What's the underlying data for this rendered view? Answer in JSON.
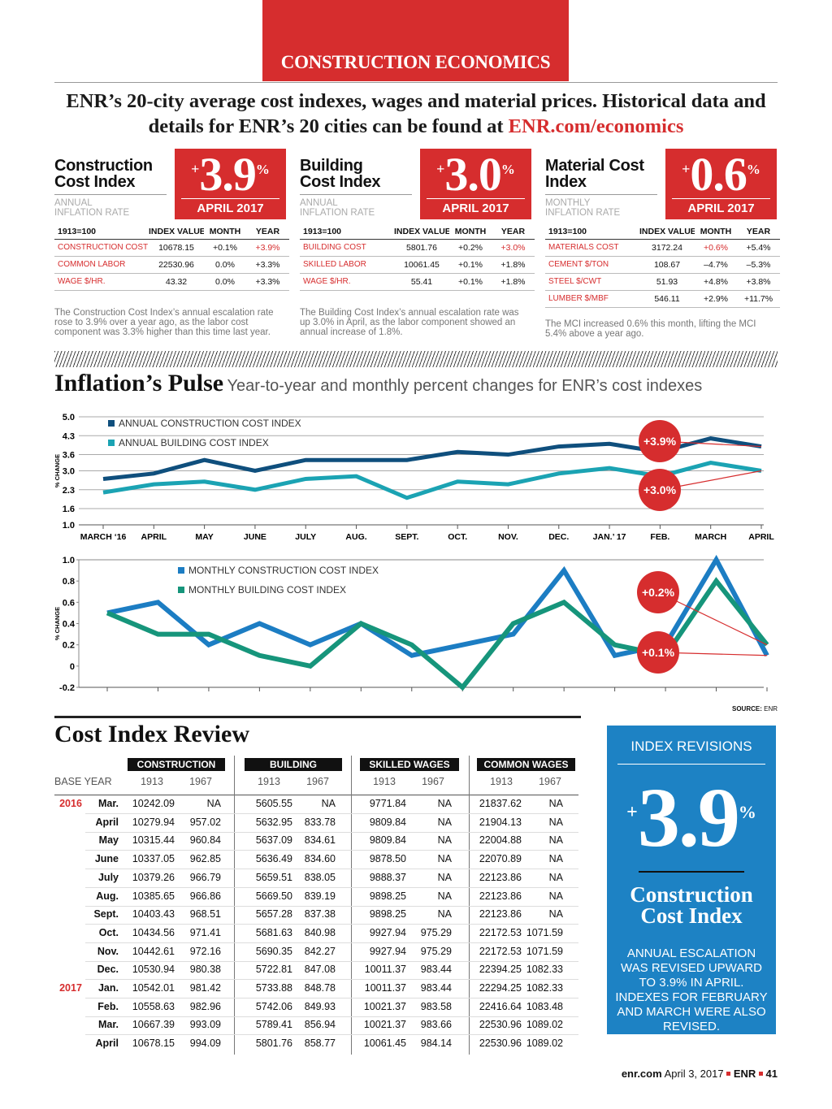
{
  "header": {
    "section": "CONSTRUCTION ECONOMICS",
    "intro": "ENR’s 20-city average cost indexes, wages and material prices. Historical data and details for ENR’s 20 cities can be found at",
    "link": "ENR.com/economics"
  },
  "panels": [
    {
      "title": "Construction Cost Index",
      "big": {
        "sign": "+",
        "number": "3.9",
        "unit": "%"
      },
      "date": "APRIL 2017",
      "rate_label": "ANNUAL INFLATION RATE",
      "columns": [
        "1913=100",
        "INDEX VALUE",
        "MONTH",
        "YEAR"
      ],
      "rows": [
        [
          "CONSTRUCTION COST",
          "10678.15",
          "+0.1%",
          "+3.9%"
        ],
        [
          "COMMON LABOR",
          "22530.96",
          "0.0%",
          "+3.3%"
        ],
        [
          "WAGE $/HR.",
          "43.32",
          "0.0%",
          "+3.3%"
        ]
      ],
      "highlight": [
        0,
        3
      ],
      "note": "The Construction Cost Index’s annual escalation rate rose to 3.9% over a year ago, as the labor cost component was 3.3% higher than this time last year."
    },
    {
      "title": "Building Cost Index",
      "big": {
        "sign": "+",
        "number": "3.0",
        "unit": "%"
      },
      "date": "APRIL 2017",
      "rate_label": "ANNUAL INFLATION RATE",
      "columns": [
        "1913=100",
        "INDEX VALUE",
        "MONTH",
        "YEAR"
      ],
      "rows": [
        [
          "BUILDING COST",
          "5801.76",
          "+0.2%",
          "+3.0%"
        ],
        [
          "SKILLED LABOR",
          "10061.45",
          "+0.1%",
          "+1.8%"
        ],
        [
          "WAGE $/HR.",
          "55.41",
          "+0.1%",
          "+1.8%"
        ]
      ],
      "highlight": [
        0,
        3
      ],
      "note": "The Building Cost Index’s annual escalation rate was up 3.0% in April, as the labor component showed an annual increase of 1.8%."
    },
    {
      "title": "Material Cost Index",
      "big": {
        "sign": "+",
        "number": "0.6",
        "unit": "%"
      },
      "date": "APRIL 2017",
      "rate_label": "MONTHLY INFLATION RATE",
      "columns": [
        "1913=100",
        "INDEX VALUE",
        "MONTH",
        "YEAR"
      ],
      "rows": [
        [
          "MATERIALS COST",
          "3172.24",
          "+0.6%",
          "+5.4%"
        ],
        [
          "CEMENT $/TON",
          "108.67",
          "–4.7%",
          "–5.3%"
        ],
        [
          "STEEL $/CWT",
          "51.93",
          "+4.8%",
          "+3.8%"
        ],
        [
          "LUMBER $/MBF",
          "546.11",
          "+2.9%",
          "+11.7%"
        ]
      ],
      "highlight": [
        0,
        2
      ],
      "note": "The MCI increased 0.6% this month, lifting the MCI 5.4% above a year ago."
    }
  ],
  "pulse": {
    "title": "Inflation’s Pulse",
    "subtitle": "Year-to-year and monthly percent changes for ENR’s cost indexes",
    "annual": {
      "type": "line",
      "y_label": "% CHANGE",
      "categories": [
        "MARCH ‘16",
        "APRIL",
        "MAY",
        "JUNE",
        "JULY",
        "AUG.",
        "SEPT.",
        "OCT.",
        "NOV.",
        "DEC.",
        "JAN.’ 17",
        "FEB.",
        "MARCH",
        "APRIL"
      ],
      "series": [
        {
          "name": "ANNUAL CONSTRUCTION COST INDEX",
          "color": "#0f4f7d",
          "values": [
            2.7,
            2.9,
            3.4,
            3.0,
            3.4,
            3.4,
            3.4,
            3.7,
            3.6,
            3.9,
            4.0,
            3.7,
            4.2,
            3.9
          ],
          "callout": "+3.9%"
        },
        {
          "name": "ANNUAL BUILDING COST INDEX",
          "color": "#1ba3b3",
          "values": [
            2.2,
            2.5,
            2.6,
            2.3,
            2.7,
            2.8,
            2.0,
            2.6,
            2.5,
            2.9,
            3.1,
            2.8,
            3.3,
            3.0
          ],
          "callout": "+3.0%"
        }
      ],
      "ylim": [
        1,
        5
      ],
      "yticks": [
        {
          "value": 1,
          "label": "1.0"
        },
        1.6,
        2.3,
        {
          "value": 3,
          "label": "3.0"
        },
        3.6,
        4.3,
        {
          "value": 5,
          "label": "5.0"
        }
      ],
      "grid": true
    },
    "monthly": {
      "type": "line",
      "y_label": "% CHANGE",
      "categories": [
        null,
        null,
        null,
        null,
        null,
        null,
        null,
        null,
        null,
        null,
        null,
        null,
        null,
        null
      ],
      "series": [
        {
          "name": "MONTHLY CONSTRUCTION COST INDEX",
          "color": "#1c7dc3",
          "values": [
            0.5,
            0.6,
            0.2,
            0.4,
            0.2,
            0.4,
            0.1,
            0.2,
            0.3,
            0.9,
            0.1,
            0.2,
            1.0,
            0.1
          ],
          "callout": "+0.1%"
        },
        {
          "name": "MONTHLY BUILDING COST INDEX",
          "color": "#16957b",
          "values": [
            0.5,
            0.3,
            0.3,
            0.1,
            0.0,
            0.4,
            0.2,
            -0.2,
            0.4,
            0.6,
            0.2,
            0.1,
            0.8,
            0.2
          ],
          "callout": "+0.2%"
        }
      ],
      "ylim": [
        -0.2,
        1
      ],
      "yticks": [
        {
          "value": 1,
          "label": "1.0"
        },
        0.8,
        0.6,
        0.4,
        0.2,
        0,
        -0.2
      ],
      "grid": false
    },
    "source_label": "SOURCE:",
    "source": "ENR"
  },
  "review": {
    "title": "Cost Index Review",
    "groups": [
      "CONSTRUCTION",
      "BUILDING",
      "SKILLED WAGES",
      "COMMON WAGES"
    ],
    "base_year_label": "BASE YEAR",
    "base_years": [
      "1913",
      "1967"
    ],
    "rows": [
      {
        "year": "2016",
        "month": "Mar.",
        "values": [
          "10242.09",
          "NA",
          "5605.55",
          "NA",
          "9771.84",
          "NA",
          "21837.62",
          "NA"
        ]
      },
      {
        "year": null,
        "month": "April",
        "values": [
          "10279.94",
          "957.02",
          "5632.95",
          "833.78",
          "9809.84",
          "NA",
          "21904.13",
          "NA"
        ]
      },
      {
        "year": null,
        "month": "May",
        "values": [
          "10315.44",
          "960.84",
          "5637.09",
          "834.61",
          "9809.84",
          "NA",
          "22004.88",
          "NA"
        ]
      },
      {
        "year": null,
        "month": "June",
        "values": [
          "10337.05",
          "962.85",
          "5636.49",
          "834.60",
          "9878.50",
          "NA",
          "22070.89",
          "NA"
        ]
      },
      {
        "year": null,
        "month": "July",
        "values": [
          "10379.26",
          "966.79",
          "5659.51",
          "838.05",
          "9888.37",
          "NA",
          "22123.86",
          "NA"
        ]
      },
      {
        "year": null,
        "month": "Aug.",
        "values": [
          "10385.65",
          "966.86",
          "5669.50",
          "839.19",
          "9898.25",
          "NA",
          "22123.86",
          "NA"
        ]
      },
      {
        "year": null,
        "month": "Sept.",
        "values": [
          "10403.43",
          "968.51",
          "5657.28",
          "837.38",
          "9898.25",
          "NA",
          "22123.86",
          "NA"
        ]
      },
      {
        "year": null,
        "month": "Oct.",
        "values": [
          "10434.56",
          "971.41",
          "5681.63",
          "840.98",
          "9927.94",
          "975.29",
          "22172.53",
          "1071.59"
        ]
      },
      {
        "year": null,
        "month": "Nov.",
        "values": [
          "10442.61",
          "972.16",
          "5690.35",
          "842.27",
          "9927.94",
          "975.29",
          "22172.53",
          "1071.59"
        ]
      },
      {
        "year": null,
        "month": "Dec.",
        "values": [
          "10530.94",
          "980.38",
          "5722.81",
          "847.08",
          "10011.37",
          "983.44",
          "22394.25",
          "1082.33"
        ]
      },
      {
        "year": "2017",
        "month": "Jan.",
        "values": [
          "10542.01",
          "981.42",
          "5733.88",
          "848.78",
          "10011.37",
          "983.44",
          "22294.25",
          "1082.33"
        ]
      },
      {
        "year": null,
        "month": "Feb.",
        "values": [
          "10558.63",
          "982.96",
          "5742.06",
          "849.93",
          "10021.37",
          "983.58",
          "22416.64",
          "1083.48"
        ]
      },
      {
        "year": null,
        "month": "Mar.",
        "values": [
          "10667.39",
          "993.09",
          "5789.41",
          "856.94",
          "10021.37",
          "983.66",
          "22530.96",
          "1089.02"
        ]
      },
      {
        "year": null,
        "month": "April",
        "values": [
          "10678.15",
          "994.09",
          "5801.76",
          "858.77",
          "10061.45",
          "984.14",
          "22530.96",
          "1089.02"
        ]
      }
    ]
  },
  "sidebar": {
    "title": "INDEX REVISIONS",
    "sign": "+",
    "number": "3.9",
    "unit": "%",
    "name": "Construction Cost Index",
    "text": "ANNUAL ESCALATION WAS REVISED UPWARD TO 3.9% IN APRIL. INDEXES FOR FEBRUARY AND MARCH WERE ALSO REVISED."
  },
  "footer": {
    "site": "enr.com",
    "date": "April 3, 2017",
    "brand": "ENR",
    "page": "41"
  }
}
